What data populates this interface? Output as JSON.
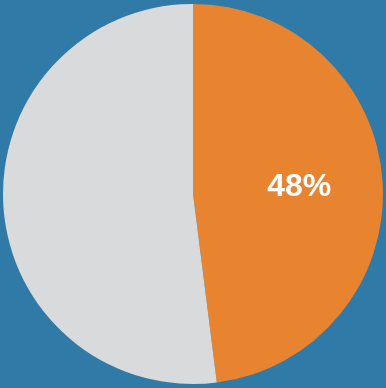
{
  "chart_data": {
    "type": "pie",
    "values": [
      48,
      52
    ],
    "value_labels": [
      "48%",
      null
    ],
    "colors": [
      "#e8832f",
      "#d8dadb"
    ],
    "data_labels": true
  }
}
